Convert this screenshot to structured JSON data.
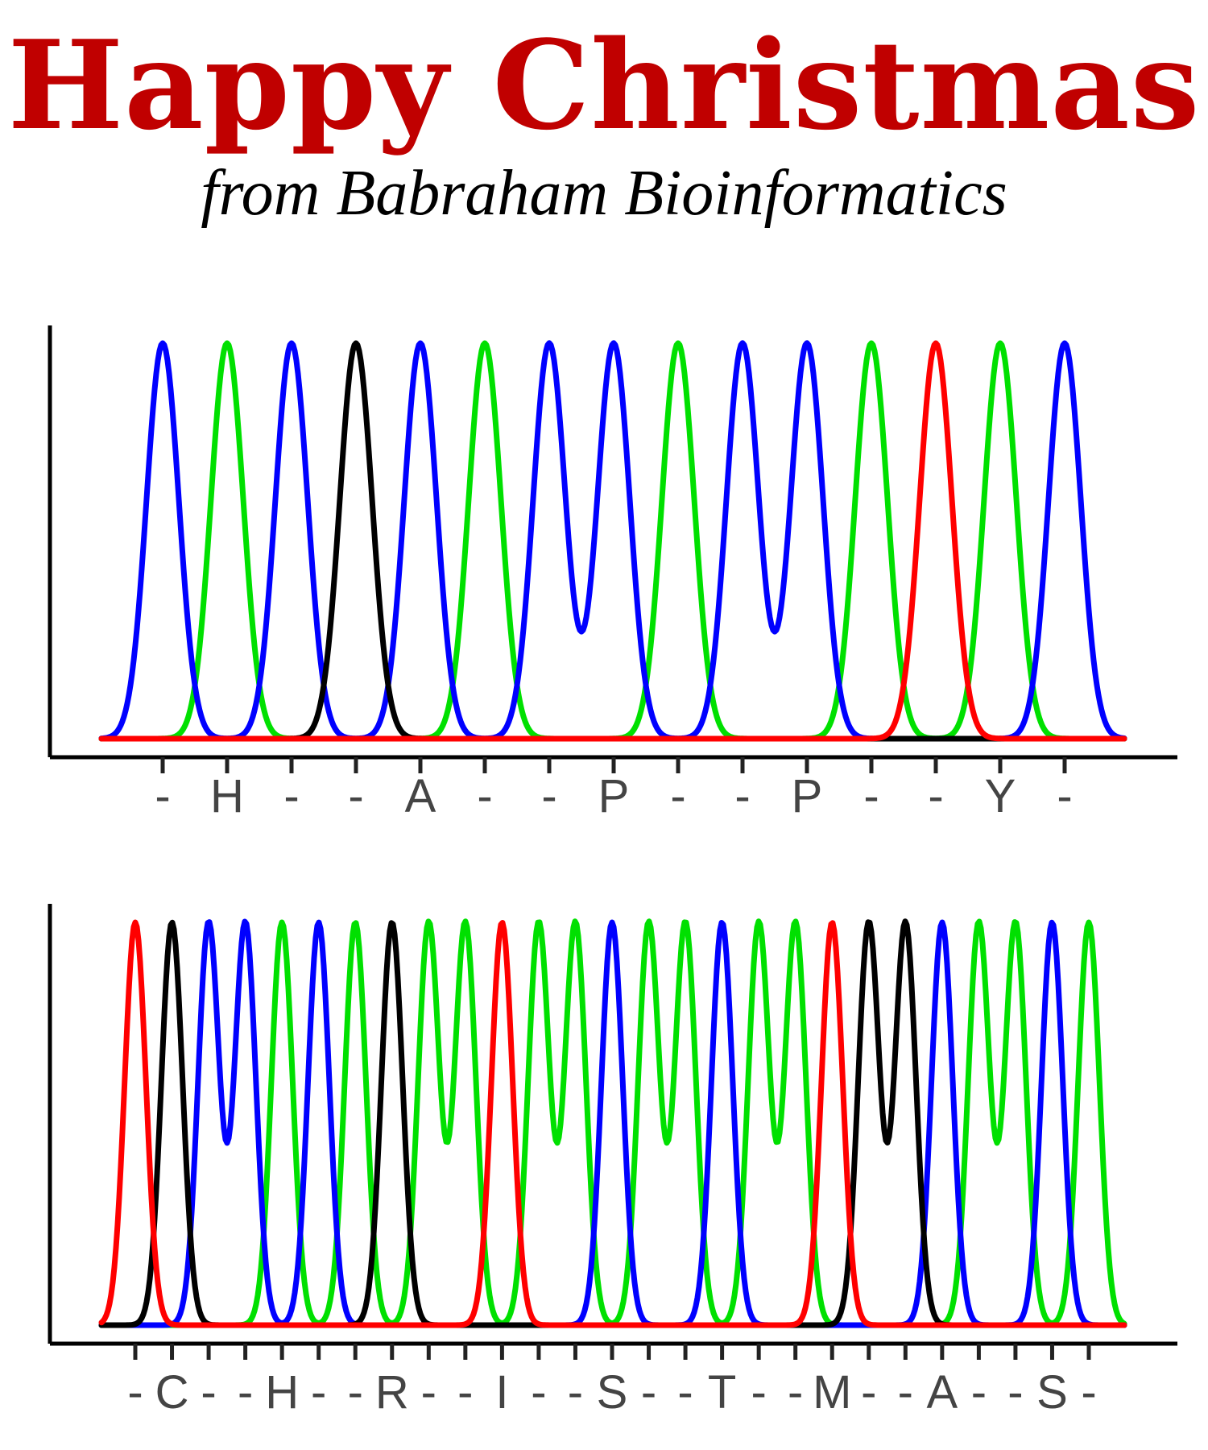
{
  "header": {
    "title": "Happy Christmas",
    "subtitle": "from Babraham Bioinformatics"
  },
  "colors": {
    "title": "#c00000",
    "A": "#00e000",
    "C": "#0000ff",
    "G": "#000000",
    "T": "#ff0000",
    "axis": "#000000",
    "tick_label": "#444444"
  },
  "chart_data": [
    {
      "type": "line",
      "title": "",
      "xlabel": "",
      "ylabel": "",
      "ylim": [
        0,
        1
      ],
      "grid": false,
      "legend": "none",
      "tick_labels": [
        "-",
        "H",
        "-",
        "-",
        "A",
        "-",
        "-",
        "P",
        "-",
        "-",
        "P",
        "-",
        "-",
        "Y",
        "-"
      ],
      "peak_bases": [
        "C",
        "A",
        "C",
        "G",
        "C",
        "A",
        "C",
        "C",
        "A",
        "C",
        "C",
        "A",
        "T",
        "A",
        "C"
      ],
      "peak_heights": [
        1,
        1,
        1,
        1,
        1,
        1,
        1,
        1,
        1,
        1,
        1,
        1,
        1,
        1,
        1
      ],
      "series": [
        {
          "name": "A",
          "color": "#00e000"
        },
        {
          "name": "C",
          "color": "#0000ff"
        },
        {
          "name": "G",
          "color": "#000000"
        },
        {
          "name": "T",
          "color": "#ff0000"
        }
      ]
    },
    {
      "type": "line",
      "title": "",
      "xlabel": "",
      "ylabel": "",
      "ylim": [
        0,
        1
      ],
      "grid": false,
      "legend": "none",
      "tick_labels": [
        "-",
        "C",
        "-",
        "-",
        "H",
        "-",
        "-",
        "R",
        "-",
        "-",
        "I",
        "-",
        "-",
        "S",
        "-",
        "-",
        "T",
        "-",
        "-",
        "M",
        "-",
        "-",
        "A",
        "-",
        "-",
        "S",
        "-"
      ],
      "peak_bases": [
        "T",
        "G",
        "C",
        "C",
        "A",
        "C",
        "A",
        "G",
        "A",
        "A",
        "T",
        "A",
        "A",
        "C",
        "A",
        "A",
        "C",
        "A",
        "A",
        "T",
        "G",
        "G",
        "C",
        "A",
        "A",
        "C",
        "A"
      ],
      "peak_heights": [
        1,
        1,
        1,
        1,
        1,
        1,
        1,
        1,
        1,
        1,
        1,
        1,
        1,
        1,
        1,
        1,
        1,
        1,
        1,
        1,
        1,
        1,
        1,
        1,
        1,
        1,
        1
      ],
      "series": [
        {
          "name": "A",
          "color": "#00e000"
        },
        {
          "name": "C",
          "color": "#0000ff"
        },
        {
          "name": "G",
          "color": "#000000"
        },
        {
          "name": "T",
          "color": "#ff0000"
        }
      ]
    }
  ]
}
